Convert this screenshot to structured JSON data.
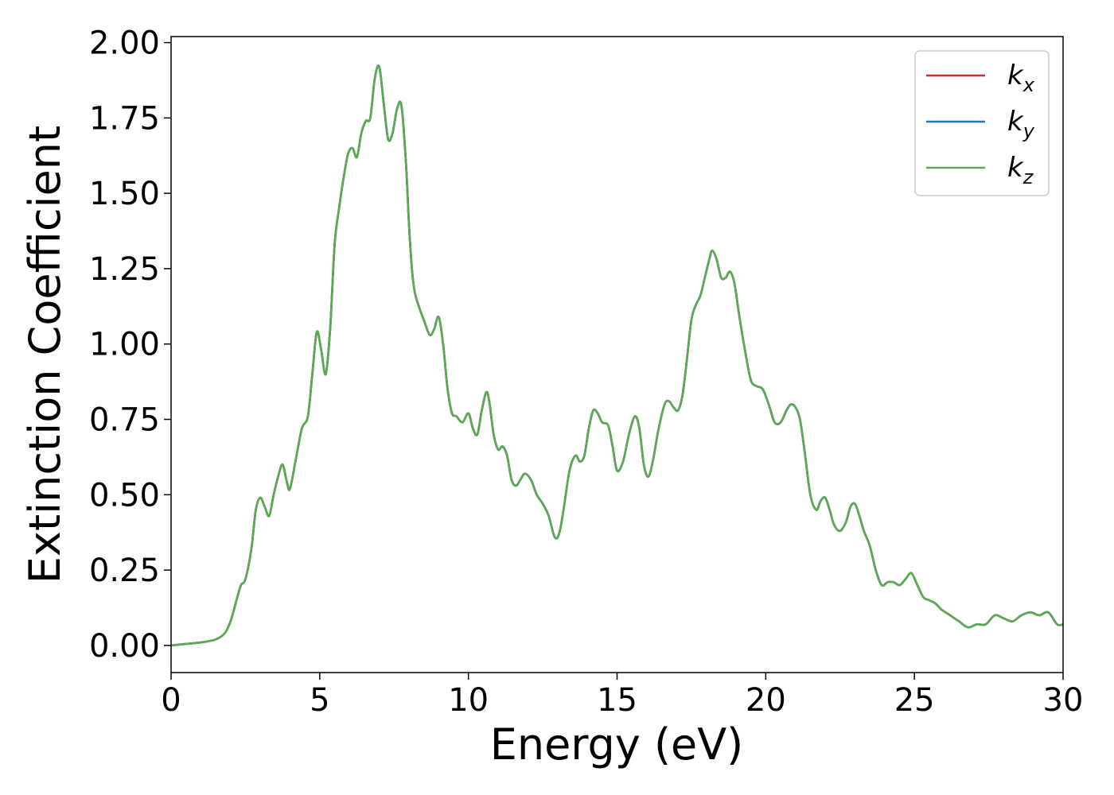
{
  "chart_data": {
    "type": "line",
    "xlabel": "Energy (eV)",
    "ylabel": "Extinction Coefficient",
    "xlim": [
      0,
      30
    ],
    "ylim": [
      -0.09,
      2.02
    ],
    "xticks": [
      0,
      5,
      10,
      15,
      20,
      25,
      30
    ],
    "yticks": [
      0.0,
      0.25,
      0.5,
      0.75,
      1.0,
      1.25,
      1.5,
      1.75,
      2.0
    ],
    "xtick_labels": [
      "0",
      "5",
      "10",
      "15",
      "20",
      "25",
      "30"
    ],
    "ytick_labels": [
      "0.00",
      "0.25",
      "0.50",
      "0.75",
      "1.00",
      "1.25",
      "1.50",
      "1.75",
      "2.00"
    ],
    "grid": false,
    "legend_position": "top-right",
    "series": [
      {
        "name": "k_x",
        "base": "k",
        "sub": "x",
        "color": "#d62728",
        "x": [
          0,
          0.5,
          1,
          1.5,
          1.8,
          2.0,
          2.2,
          2.35,
          2.5,
          2.7,
          2.85,
          3.0,
          3.15,
          3.3,
          3.45,
          3.6,
          3.75,
          3.9,
          4.0,
          4.2,
          4.4,
          4.6,
          4.75,
          4.9,
          5.05,
          5.2,
          5.35,
          5.5,
          5.65,
          5.8,
          5.95,
          6.1,
          6.25,
          6.4,
          6.55,
          6.7,
          6.85,
          7.0,
          7.15,
          7.3,
          7.45,
          7.6,
          7.75,
          7.9,
          8.0,
          8.1,
          8.2,
          8.35,
          8.5,
          8.7,
          8.85,
          9.0,
          9.15,
          9.3,
          9.45,
          9.6,
          9.8,
          10.0,
          10.15,
          10.3,
          10.45,
          10.6,
          10.7,
          10.85,
          11.0,
          11.15,
          11.3,
          11.45,
          11.6,
          11.75,
          11.9,
          12.1,
          12.3,
          12.5,
          12.7,
          12.9,
          13.05,
          13.2,
          13.4,
          13.6,
          13.75,
          13.9,
          14.05,
          14.2,
          14.35,
          14.5,
          14.7,
          14.85,
          15.0,
          15.2,
          15.4,
          15.6,
          15.75,
          15.9,
          16.05,
          16.2,
          16.4,
          16.6,
          16.75,
          16.9,
          17.05,
          17.2,
          17.35,
          17.5,
          17.65,
          17.8,
          17.95,
          18.1,
          18.2,
          18.35,
          18.5,
          18.65,
          18.8,
          18.95,
          19.1,
          19.3,
          19.5,
          19.7,
          19.9,
          20.1,
          20.3,
          20.5,
          20.7,
          20.85,
          21.0,
          21.15,
          21.3,
          21.5,
          21.7,
          21.85,
          22.0,
          22.15,
          22.3,
          22.5,
          22.7,
          22.85,
          23.0,
          23.15,
          23.3,
          23.5,
          23.7,
          23.9,
          24.1,
          24.3,
          24.5,
          24.7,
          24.9,
          25.1,
          25.3,
          25.5,
          25.7,
          25.9,
          26.2,
          26.5,
          26.8,
          27.1,
          27.4,
          27.7,
          28.0,
          28.3,
          28.6,
          28.9,
          29.2,
          29.5,
          29.8,
          30.0
        ],
        "y": [
          0.0,
          0.005,
          0.01,
          0.02,
          0.04,
          0.08,
          0.15,
          0.2,
          0.22,
          0.32,
          0.45,
          0.49,
          0.46,
          0.43,
          0.5,
          0.56,
          0.6,
          0.54,
          0.52,
          0.62,
          0.72,
          0.76,
          0.9,
          1.04,
          0.98,
          0.9,
          1.05,
          1.33,
          1.45,
          1.55,
          1.63,
          1.65,
          1.62,
          1.7,
          1.74,
          1.75,
          1.88,
          1.92,
          1.8,
          1.68,
          1.7,
          1.78,
          1.79,
          1.6,
          1.4,
          1.25,
          1.17,
          1.12,
          1.08,
          1.03,
          1.05,
          1.09,
          1.0,
          0.85,
          0.77,
          0.76,
          0.74,
          0.77,
          0.72,
          0.7,
          0.78,
          0.84,
          0.81,
          0.7,
          0.65,
          0.66,
          0.63,
          0.55,
          0.53,
          0.55,
          0.57,
          0.55,
          0.5,
          0.47,
          0.43,
          0.36,
          0.37,
          0.45,
          0.58,
          0.63,
          0.61,
          0.63,
          0.72,
          0.78,
          0.77,
          0.74,
          0.73,
          0.66,
          0.58,
          0.61,
          0.7,
          0.76,
          0.72,
          0.6,
          0.56,
          0.61,
          0.72,
          0.8,
          0.81,
          0.79,
          0.78,
          0.83,
          0.95,
          1.08,
          1.13,
          1.16,
          1.22,
          1.28,
          1.31,
          1.28,
          1.22,
          1.22,
          1.24,
          1.2,
          1.1,
          0.98,
          0.88,
          0.86,
          0.85,
          0.8,
          0.74,
          0.74,
          0.78,
          0.8,
          0.79,
          0.75,
          0.65,
          0.5,
          0.45,
          0.48,
          0.49,
          0.45,
          0.4,
          0.38,
          0.41,
          0.46,
          0.47,
          0.43,
          0.38,
          0.33,
          0.25,
          0.2,
          0.21,
          0.21,
          0.2,
          0.22,
          0.24,
          0.2,
          0.16,
          0.15,
          0.14,
          0.12,
          0.1,
          0.08,
          0.06,
          0.07,
          0.07,
          0.1,
          0.09,
          0.08,
          0.1,
          0.11,
          0.1,
          0.11,
          0.07,
          0.07
        ]
      },
      {
        "name": "k_y",
        "base": "k",
        "sub": "y",
        "color": "#1f77b4",
        "x": [
          0,
          0.5,
          1,
          1.5,
          1.8,
          2.0,
          2.2,
          2.35,
          2.5,
          2.7,
          2.85,
          3.0,
          3.15,
          3.3,
          3.45,
          3.6,
          3.75,
          3.9,
          4.0,
          4.2,
          4.4,
          4.6,
          4.75,
          4.9,
          5.05,
          5.2,
          5.35,
          5.5,
          5.65,
          5.8,
          5.95,
          6.1,
          6.25,
          6.4,
          6.55,
          6.7,
          6.85,
          7.0,
          7.15,
          7.3,
          7.45,
          7.6,
          7.75,
          7.9,
          8.0,
          8.1,
          8.2,
          8.35,
          8.5,
          8.7,
          8.85,
          9.0,
          9.15,
          9.3,
          9.45,
          9.6,
          9.8,
          10.0,
          10.15,
          10.3,
          10.45,
          10.6,
          10.7,
          10.85,
          11.0,
          11.15,
          11.3,
          11.45,
          11.6,
          11.75,
          11.9,
          12.1,
          12.3,
          12.5,
          12.7,
          12.9,
          13.05,
          13.2,
          13.4,
          13.6,
          13.75,
          13.9,
          14.05,
          14.2,
          14.35,
          14.5,
          14.7,
          14.85,
          15.0,
          15.2,
          15.4,
          15.6,
          15.75,
          15.9,
          16.05,
          16.2,
          16.4,
          16.6,
          16.75,
          16.9,
          17.05,
          17.2,
          17.35,
          17.5,
          17.65,
          17.8,
          17.95,
          18.1,
          18.2,
          18.35,
          18.5,
          18.65,
          18.8,
          18.95,
          19.1,
          19.3,
          19.5,
          19.7,
          19.9,
          20.1,
          20.3,
          20.5,
          20.7,
          20.85,
          21.0,
          21.15,
          21.3,
          21.5,
          21.7,
          21.85,
          22.0,
          22.15,
          22.3,
          22.5,
          22.7,
          22.85,
          23.0,
          23.15,
          23.3,
          23.5,
          23.7,
          23.9,
          24.1,
          24.3,
          24.5,
          24.7,
          24.9,
          25.1,
          25.3,
          25.5,
          25.7,
          25.9,
          26.2,
          26.5,
          26.8,
          27.1,
          27.4,
          27.7,
          28.0,
          28.3,
          28.6,
          28.9,
          29.2,
          29.5,
          29.8,
          30.0
        ],
        "y": [
          0.0,
          0.005,
          0.01,
          0.02,
          0.04,
          0.08,
          0.15,
          0.2,
          0.22,
          0.32,
          0.45,
          0.49,
          0.46,
          0.43,
          0.5,
          0.56,
          0.6,
          0.54,
          0.52,
          0.62,
          0.72,
          0.76,
          0.9,
          1.04,
          0.98,
          0.9,
          1.05,
          1.33,
          1.45,
          1.55,
          1.63,
          1.65,
          1.62,
          1.7,
          1.74,
          1.75,
          1.88,
          1.92,
          1.8,
          1.68,
          1.7,
          1.78,
          1.79,
          1.6,
          1.4,
          1.25,
          1.17,
          1.12,
          1.08,
          1.03,
          1.05,
          1.09,
          1.0,
          0.85,
          0.77,
          0.76,
          0.74,
          0.77,
          0.72,
          0.7,
          0.78,
          0.84,
          0.81,
          0.7,
          0.65,
          0.66,
          0.63,
          0.55,
          0.53,
          0.55,
          0.57,
          0.55,
          0.5,
          0.47,
          0.43,
          0.36,
          0.37,
          0.45,
          0.58,
          0.63,
          0.61,
          0.63,
          0.72,
          0.78,
          0.77,
          0.74,
          0.73,
          0.66,
          0.58,
          0.61,
          0.7,
          0.76,
          0.72,
          0.6,
          0.56,
          0.61,
          0.72,
          0.8,
          0.81,
          0.79,
          0.78,
          0.83,
          0.95,
          1.08,
          1.13,
          1.16,
          1.22,
          1.28,
          1.31,
          1.28,
          1.22,
          1.22,
          1.24,
          1.2,
          1.1,
          0.98,
          0.88,
          0.86,
          0.85,
          0.8,
          0.74,
          0.74,
          0.78,
          0.8,
          0.79,
          0.75,
          0.65,
          0.5,
          0.45,
          0.48,
          0.49,
          0.45,
          0.4,
          0.38,
          0.41,
          0.46,
          0.47,
          0.43,
          0.38,
          0.33,
          0.25,
          0.2,
          0.21,
          0.21,
          0.2,
          0.22,
          0.24,
          0.2,
          0.16,
          0.15,
          0.14,
          0.12,
          0.1,
          0.08,
          0.06,
          0.07,
          0.07,
          0.1,
          0.09,
          0.08,
          0.1,
          0.11,
          0.1,
          0.11,
          0.07,
          0.07
        ]
      },
      {
        "name": "k_z",
        "base": "k",
        "sub": "z",
        "color": "#5aaa4f",
        "x": [
          0,
          0.5,
          1,
          1.5,
          1.8,
          2.0,
          2.2,
          2.35,
          2.5,
          2.7,
          2.85,
          3.0,
          3.15,
          3.3,
          3.45,
          3.6,
          3.75,
          3.9,
          4.0,
          4.2,
          4.4,
          4.6,
          4.75,
          4.9,
          5.05,
          5.2,
          5.35,
          5.5,
          5.65,
          5.8,
          5.95,
          6.1,
          6.25,
          6.4,
          6.55,
          6.7,
          6.85,
          7.0,
          7.15,
          7.3,
          7.45,
          7.6,
          7.75,
          7.9,
          8.0,
          8.1,
          8.2,
          8.35,
          8.5,
          8.7,
          8.85,
          9.0,
          9.15,
          9.3,
          9.45,
          9.6,
          9.8,
          10.0,
          10.15,
          10.3,
          10.45,
          10.6,
          10.7,
          10.85,
          11.0,
          11.15,
          11.3,
          11.45,
          11.6,
          11.75,
          11.9,
          12.1,
          12.3,
          12.5,
          12.7,
          12.9,
          13.05,
          13.2,
          13.4,
          13.6,
          13.75,
          13.9,
          14.05,
          14.2,
          14.35,
          14.5,
          14.7,
          14.85,
          15.0,
          15.2,
          15.4,
          15.6,
          15.75,
          15.9,
          16.05,
          16.2,
          16.4,
          16.6,
          16.75,
          16.9,
          17.05,
          17.2,
          17.35,
          17.5,
          17.65,
          17.8,
          17.95,
          18.1,
          18.2,
          18.35,
          18.5,
          18.65,
          18.8,
          18.95,
          19.1,
          19.3,
          19.5,
          19.7,
          19.9,
          20.1,
          20.3,
          20.5,
          20.7,
          20.85,
          21.0,
          21.15,
          21.3,
          21.5,
          21.7,
          21.85,
          22.0,
          22.15,
          22.3,
          22.5,
          22.7,
          22.85,
          23.0,
          23.15,
          23.3,
          23.5,
          23.7,
          23.9,
          24.1,
          24.3,
          24.5,
          24.7,
          24.9,
          25.1,
          25.3,
          25.5,
          25.7,
          25.9,
          26.2,
          26.5,
          26.8,
          27.1,
          27.4,
          27.7,
          28.0,
          28.3,
          28.6,
          28.9,
          29.2,
          29.5,
          29.8,
          30.0
        ],
        "y": [
          0.0,
          0.005,
          0.01,
          0.02,
          0.04,
          0.08,
          0.15,
          0.2,
          0.22,
          0.32,
          0.45,
          0.49,
          0.46,
          0.43,
          0.5,
          0.56,
          0.6,
          0.54,
          0.52,
          0.62,
          0.72,
          0.76,
          0.9,
          1.04,
          0.98,
          0.9,
          1.05,
          1.33,
          1.45,
          1.55,
          1.63,
          1.65,
          1.62,
          1.7,
          1.74,
          1.75,
          1.88,
          1.92,
          1.8,
          1.68,
          1.7,
          1.78,
          1.79,
          1.6,
          1.4,
          1.25,
          1.17,
          1.12,
          1.08,
          1.03,
          1.05,
          1.09,
          1.0,
          0.85,
          0.77,
          0.76,
          0.74,
          0.77,
          0.72,
          0.7,
          0.78,
          0.84,
          0.81,
          0.7,
          0.65,
          0.66,
          0.63,
          0.55,
          0.53,
          0.55,
          0.57,
          0.55,
          0.5,
          0.47,
          0.43,
          0.36,
          0.37,
          0.45,
          0.58,
          0.63,
          0.61,
          0.63,
          0.72,
          0.78,
          0.77,
          0.74,
          0.73,
          0.66,
          0.58,
          0.61,
          0.7,
          0.76,
          0.72,
          0.6,
          0.56,
          0.61,
          0.72,
          0.8,
          0.81,
          0.79,
          0.78,
          0.83,
          0.95,
          1.08,
          1.13,
          1.16,
          1.22,
          1.28,
          1.31,
          1.28,
          1.22,
          1.22,
          1.24,
          1.2,
          1.1,
          0.98,
          0.88,
          0.86,
          0.85,
          0.8,
          0.74,
          0.74,
          0.78,
          0.8,
          0.79,
          0.75,
          0.65,
          0.5,
          0.45,
          0.48,
          0.49,
          0.45,
          0.4,
          0.38,
          0.41,
          0.46,
          0.47,
          0.43,
          0.38,
          0.33,
          0.25,
          0.2,
          0.21,
          0.21,
          0.2,
          0.22,
          0.24,
          0.2,
          0.16,
          0.15,
          0.14,
          0.12,
          0.1,
          0.08,
          0.06,
          0.07,
          0.07,
          0.1,
          0.09,
          0.08,
          0.1,
          0.11,
          0.1,
          0.11,
          0.07,
          0.07
        ]
      }
    ]
  }
}
